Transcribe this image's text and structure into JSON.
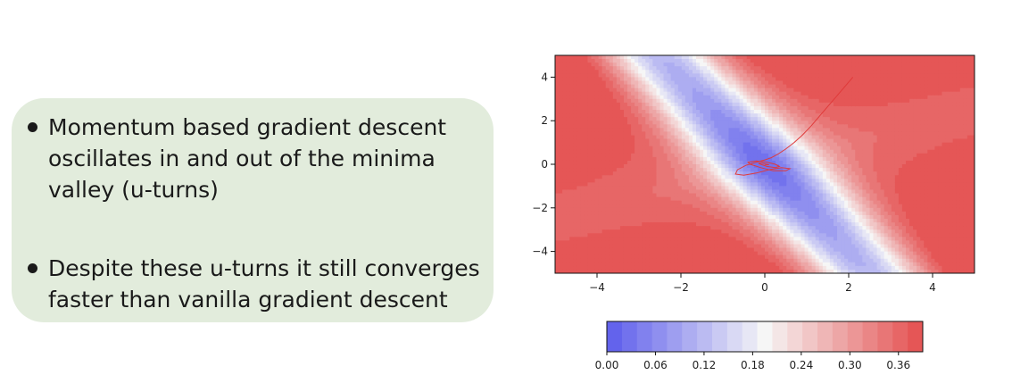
{
  "notes": {
    "bullet_1": "Momentum based gradient descent\noscillates in and out of the minima\nvalley  (u-turns)",
    "bullet_2": "Despite these u-turns it still converges\nfaster than vanilla gradient descent"
  },
  "chart_data": [
    {
      "type": "heatmap",
      "title": "",
      "xlabel": "",
      "ylabel": "",
      "xlim": [
        -5,
        5
      ],
      "ylim": [
        -5,
        5
      ],
      "xticks": [
        -4,
        -2,
        0,
        2,
        4
      ],
      "yticks": [
        -4,
        -2,
        0,
        2,
        4
      ],
      "xtick_labels": [
        "−4",
        "−2",
        "0",
        "2",
        "4"
      ],
      "ytick_labels": [
        "−4",
        "−2",
        "0",
        "2",
        "4"
      ],
      "colormap": "coolwarm",
      "color_range": [
        0.0,
        0.39
      ],
      "grid": false,
      "trajectory": {
        "color": "#e03a3a",
        "x": [
          2.1,
          1.9,
          1.7,
          1.5,
          1.3,
          1.1,
          0.9,
          0.7,
          0.5,
          0.3,
          0.15,
          0.0,
          -0.2,
          -0.45,
          -0.65,
          -0.7,
          -0.5,
          -0.2,
          0.1,
          0.4,
          0.6,
          0.5,
          0.2,
          -0.1,
          -0.35,
          -0.4,
          -0.2,
          0.05,
          0.25,
          0.35,
          0.25,
          0.05,
          -0.1,
          -0.15,
          -0.05,
          0.05,
          0.1,
          0.05,
          0.0,
          0.0
        ],
        "y": [
          4.0,
          3.55,
          3.1,
          2.65,
          2.2,
          1.75,
          1.35,
          1.0,
          0.7,
          0.45,
          0.3,
          0.2,
          0.1,
          -0.05,
          -0.25,
          -0.45,
          -0.5,
          -0.4,
          -0.25,
          -0.15,
          -0.2,
          -0.3,
          -0.3,
          -0.15,
          0.0,
          0.1,
          0.15,
          0.1,
          0.0,
          -0.1,
          -0.15,
          -0.1,
          0.0,
          0.05,
          0.05,
          0.0,
          -0.02,
          -0.02,
          0.0,
          0.0
        ]
      }
    },
    {
      "type": "colorbar",
      "range": [
        0.0,
        0.39
      ],
      "ticks": [
        0.0,
        0.06,
        0.12,
        0.18,
        0.24,
        0.3,
        0.36
      ],
      "tick_labels": [
        "0.00",
        "0.06",
        "0.12",
        "0.18",
        "0.24",
        "0.30",
        "0.36"
      ],
      "levels": 21,
      "colormap": "coolwarm"
    }
  ]
}
